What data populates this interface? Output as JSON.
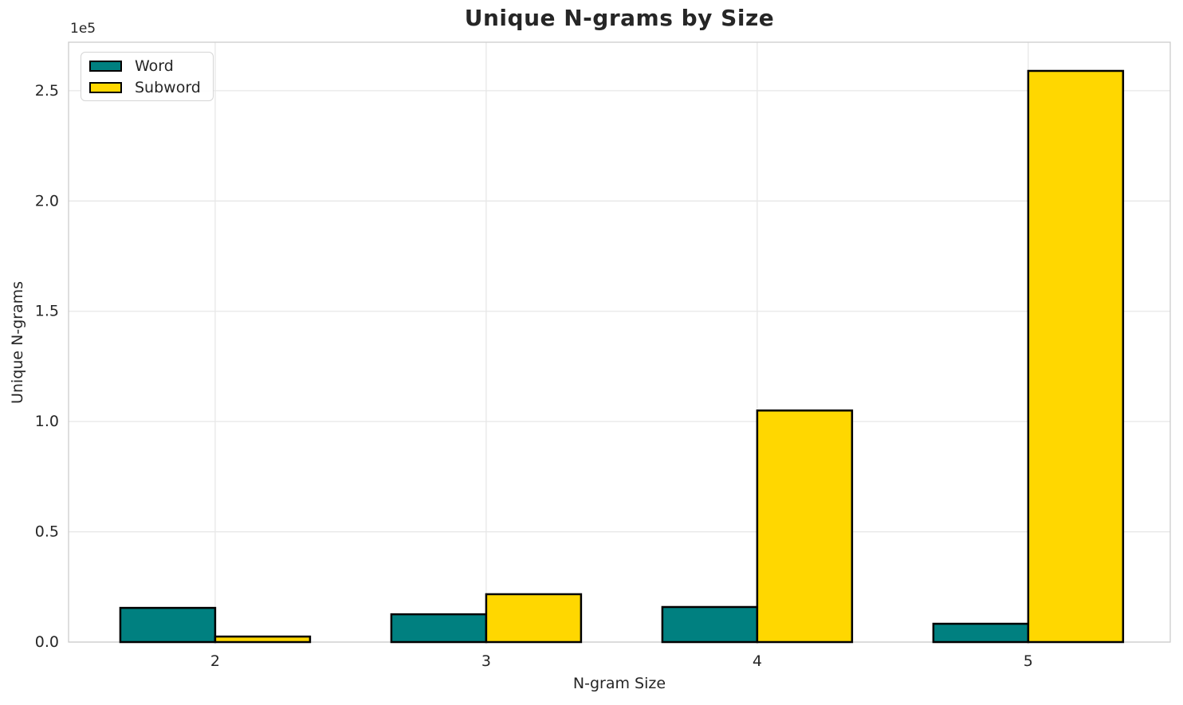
{
  "chart_data": {
    "type": "bar",
    "title": "Unique N-grams by Size",
    "xlabel": "N-gram Size",
    "ylabel": "Unique N-grams",
    "offset_label": "1e5",
    "categories": [
      "2",
      "3",
      "4",
      "5"
    ],
    "series": [
      {
        "name": "Word",
        "color": "#008080",
        "values": [
          15500,
          12600,
          15900,
          8300
        ]
      },
      {
        "name": "Subword",
        "color": "#FFD700",
        "values": [
          2500,
          21700,
          105000,
          259000
        ]
      }
    ],
    "bar_edge_color": "#000000",
    "bar_width": 0.35,
    "ylim": [
      0,
      272000
    ],
    "xlim": [
      1.459,
      5.524
    ],
    "yticks": [
      0,
      50000,
      100000,
      150000,
      200000,
      250000
    ],
    "ytick_labels": [
      "0.0",
      "0.5",
      "1.0",
      "1.5",
      "2.0",
      "2.5"
    ],
    "grid": true,
    "legend_position": "upper left"
  },
  "colors": {
    "grid": "#e7e7e7",
    "spine": "#cccccc",
    "text": "#262626",
    "background": "#ffffff"
  }
}
